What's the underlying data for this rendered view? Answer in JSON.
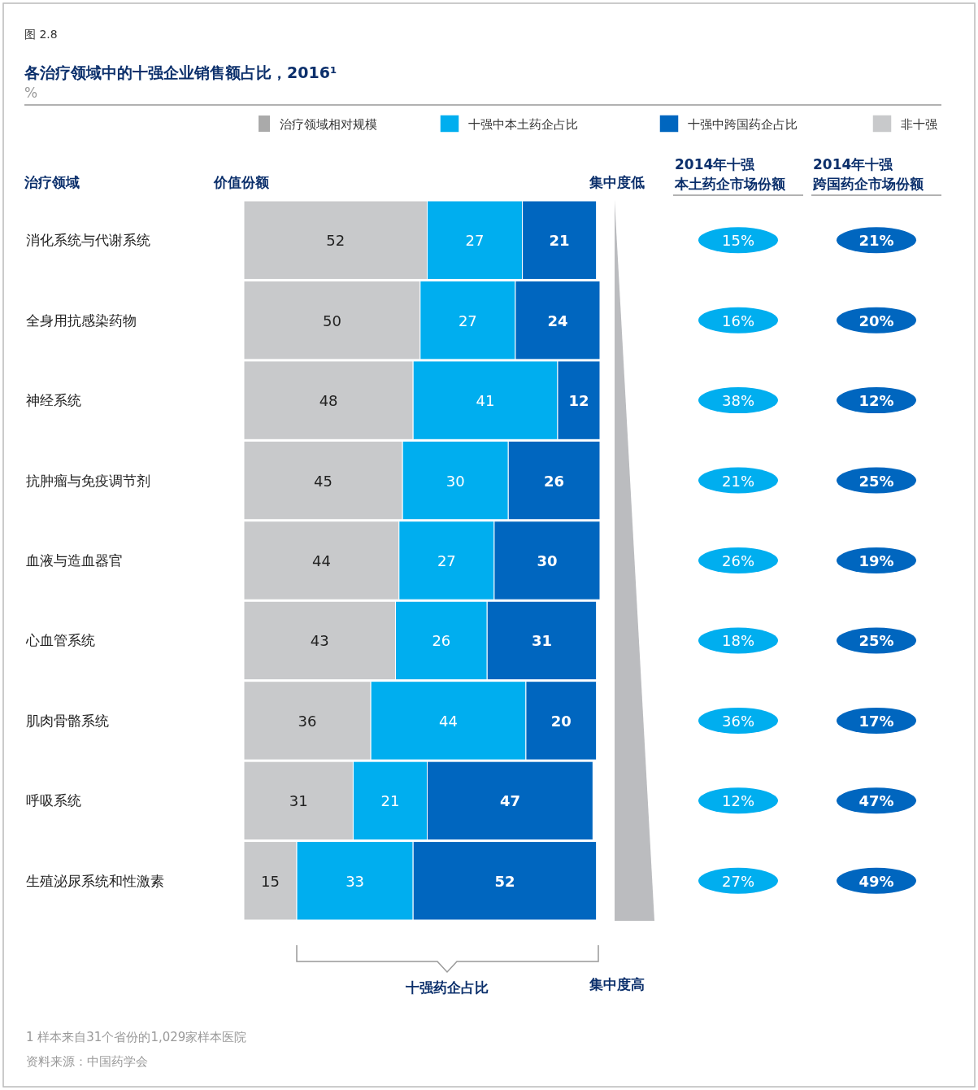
{
  "chart_data": {
    "type": "bar",
    "orientation": "horizontal",
    "stacked": true,
    "data_labels": true,
    "legend": "top",
    "title": "各治疗领域中的十强企业销售额占比，2016¹",
    "subtitle": "%",
    "xlabel": "十强药企占比",
    "ylabel": "治疗领域",
    "categories": [
      "消化系统与代谢系统",
      "全身用抗感染药物",
      "神经系统",
      "抗肿瘤与免疫调节剂",
      "血液与造血器官",
      "心血管系统",
      "肌肉骨骼系统",
      "呼吸系统",
      "生殖泌尿系统和性激素"
    ],
    "series": [
      {
        "name": "非十强",
        "color": "#c8c9cb",
        "values": [
          52,
          50,
          48,
          45,
          44,
          43,
          36,
          31,
          15
        ]
      },
      {
        "name": "十强中本土药企占比",
        "color": "#00aeef",
        "values": [
          27,
          27,
          41,
          30,
          27,
          26,
          44,
          21,
          33
        ]
      },
      {
        "name": "十强中跨国药企占比",
        "color": "#0066bf",
        "values": [
          21,
          24,
          12,
          26,
          30,
          31,
          20,
          47,
          52
        ]
      }
    ],
    "annotations": [
      "图 2.8",
      "治疗领域相对规模",
      "价值份额",
      "集中度低",
      "集中度高",
      "1 样本来自31个省份的1,029家样本医院",
      "资料来源：中国药学会",
      "2014年十强本土药企市场份额",
      "2014年十强跨国药企市场份额",
      "15%",
      "16%",
      "38%",
      "21%",
      "26%",
      "18%",
      "36%",
      "12%",
      "27%",
      "21%",
      "20%",
      "12%",
      "25%",
      "19%",
      "25%",
      "17%",
      "47%",
      "49%"
    ]
  }
}
